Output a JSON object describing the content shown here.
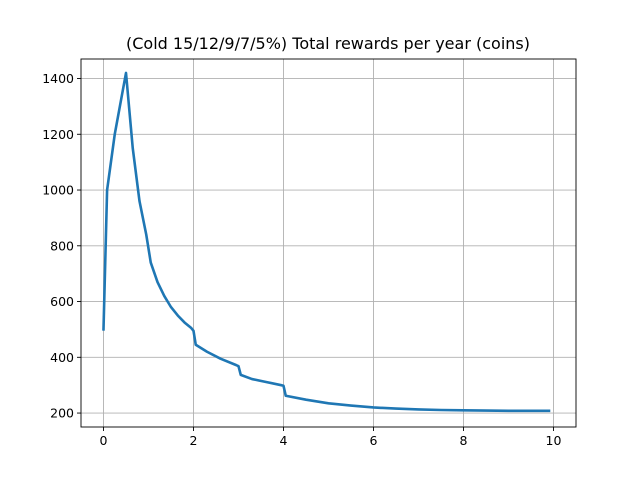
{
  "chart_data": {
    "type": "line",
    "title": "(Cold 15/12/9/7/5%) Total rewards per year (coins)",
    "xlabel": "",
    "ylabel": "",
    "xlim": [
      -0.5,
      10.5
    ],
    "ylim": [
      150,
      1470
    ],
    "xticks": [
      0,
      2,
      4,
      6,
      8,
      10
    ],
    "yticks": [
      200,
      400,
      600,
      800,
      1000,
      1200,
      1400
    ],
    "grid": true,
    "colors": {
      "line": "#1f77b4"
    },
    "series": [
      {
        "x": [
          0,
          0.08,
          0.25,
          0.5,
          0.65,
          0.8,
          0.95,
          1.05,
          1.2,
          1.35,
          1.5,
          1.65,
          1.8,
          1.95,
          2.0,
          2.05,
          2.3,
          2.6,
          2.95,
          3.0,
          3.05,
          3.3,
          3.6,
          3.95,
          4.0,
          4.05,
          4.5,
          5.0,
          5.5,
          6.0,
          6.5,
          7.0,
          7.5,
          8.0,
          8.5,
          9.0,
          9.5,
          9.9
        ],
        "y": [
          500,
          1000,
          1200,
          1420,
          1150,
          960,
          840,
          740,
          670,
          620,
          580,
          550,
          525,
          505,
          495,
          445,
          420,
          395,
          372,
          368,
          337,
          322,
          312,
          300,
          298,
          262,
          248,
          235,
          227,
          220,
          216,
          213,
          211,
          210,
          209,
          208,
          208,
          208
        ]
      }
    ]
  }
}
